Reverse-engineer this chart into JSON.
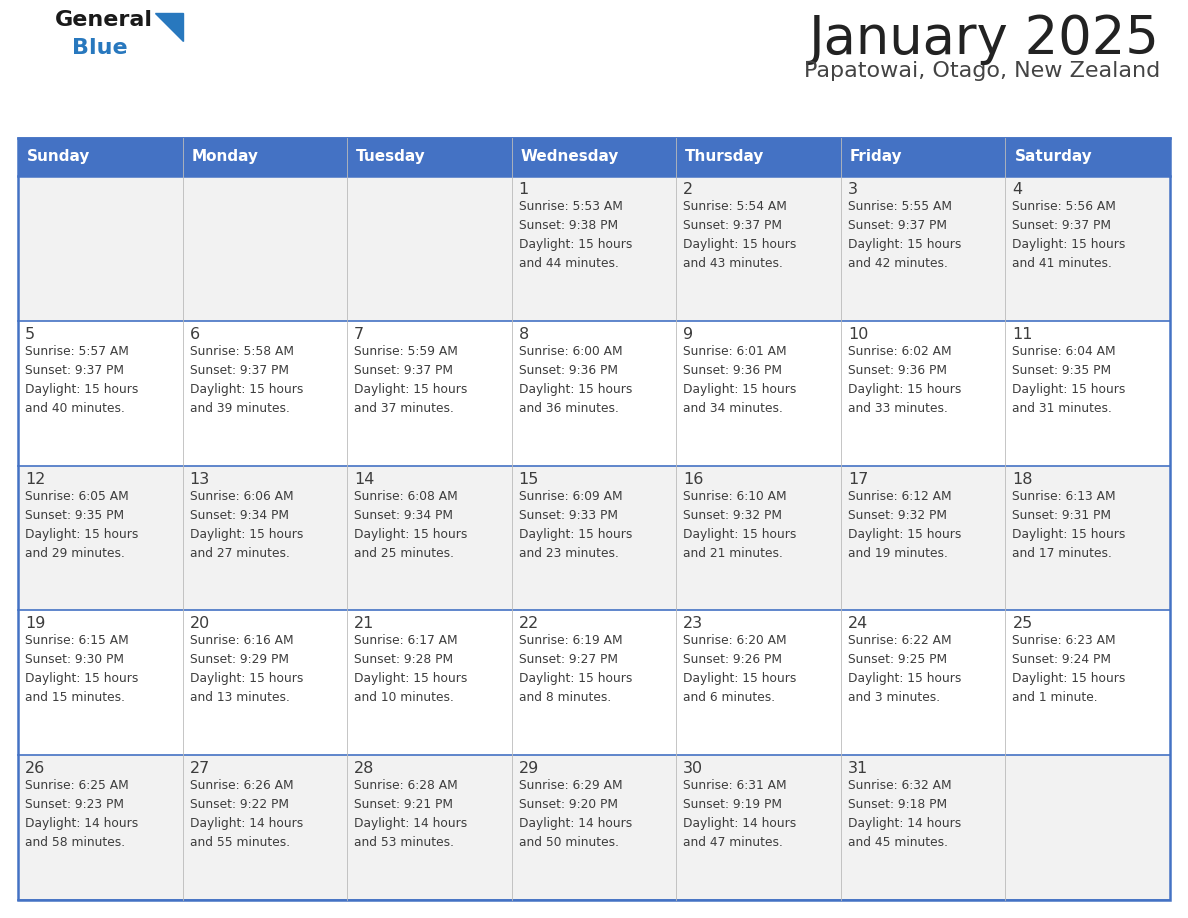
{
  "title": "January 2025",
  "subtitle": "Papatowai, Otago, New Zealand",
  "header_bg": "#4472C4",
  "header_text_color": "#FFFFFF",
  "day_names": [
    "Sunday",
    "Monday",
    "Tuesday",
    "Wednesday",
    "Thursday",
    "Friday",
    "Saturday"
  ],
  "odd_row_bg": "#F2F2F2",
  "even_row_bg": "#FFFFFF",
  "border_color": "#4472C4",
  "text_color": "#3D3D3D",
  "title_color": "#222222",
  "subtitle_color": "#444444",
  "calendar": [
    [
      {
        "day": "",
        "info": ""
      },
      {
        "day": "",
        "info": ""
      },
      {
        "day": "",
        "info": ""
      },
      {
        "day": "1",
        "info": "Sunrise: 5:53 AM\nSunset: 9:38 PM\nDaylight: 15 hours\nand 44 minutes."
      },
      {
        "day": "2",
        "info": "Sunrise: 5:54 AM\nSunset: 9:37 PM\nDaylight: 15 hours\nand 43 minutes."
      },
      {
        "day": "3",
        "info": "Sunrise: 5:55 AM\nSunset: 9:37 PM\nDaylight: 15 hours\nand 42 minutes."
      },
      {
        "day": "4",
        "info": "Sunrise: 5:56 AM\nSunset: 9:37 PM\nDaylight: 15 hours\nand 41 minutes."
      }
    ],
    [
      {
        "day": "5",
        "info": "Sunrise: 5:57 AM\nSunset: 9:37 PM\nDaylight: 15 hours\nand 40 minutes."
      },
      {
        "day": "6",
        "info": "Sunrise: 5:58 AM\nSunset: 9:37 PM\nDaylight: 15 hours\nand 39 minutes."
      },
      {
        "day": "7",
        "info": "Sunrise: 5:59 AM\nSunset: 9:37 PM\nDaylight: 15 hours\nand 37 minutes."
      },
      {
        "day": "8",
        "info": "Sunrise: 6:00 AM\nSunset: 9:36 PM\nDaylight: 15 hours\nand 36 minutes."
      },
      {
        "day": "9",
        "info": "Sunrise: 6:01 AM\nSunset: 9:36 PM\nDaylight: 15 hours\nand 34 minutes."
      },
      {
        "day": "10",
        "info": "Sunrise: 6:02 AM\nSunset: 9:36 PM\nDaylight: 15 hours\nand 33 minutes."
      },
      {
        "day": "11",
        "info": "Sunrise: 6:04 AM\nSunset: 9:35 PM\nDaylight: 15 hours\nand 31 minutes."
      }
    ],
    [
      {
        "day": "12",
        "info": "Sunrise: 6:05 AM\nSunset: 9:35 PM\nDaylight: 15 hours\nand 29 minutes."
      },
      {
        "day": "13",
        "info": "Sunrise: 6:06 AM\nSunset: 9:34 PM\nDaylight: 15 hours\nand 27 minutes."
      },
      {
        "day": "14",
        "info": "Sunrise: 6:08 AM\nSunset: 9:34 PM\nDaylight: 15 hours\nand 25 minutes."
      },
      {
        "day": "15",
        "info": "Sunrise: 6:09 AM\nSunset: 9:33 PM\nDaylight: 15 hours\nand 23 minutes."
      },
      {
        "day": "16",
        "info": "Sunrise: 6:10 AM\nSunset: 9:32 PM\nDaylight: 15 hours\nand 21 minutes."
      },
      {
        "day": "17",
        "info": "Sunrise: 6:12 AM\nSunset: 9:32 PM\nDaylight: 15 hours\nand 19 minutes."
      },
      {
        "day": "18",
        "info": "Sunrise: 6:13 AM\nSunset: 9:31 PM\nDaylight: 15 hours\nand 17 minutes."
      }
    ],
    [
      {
        "day": "19",
        "info": "Sunrise: 6:15 AM\nSunset: 9:30 PM\nDaylight: 15 hours\nand 15 minutes."
      },
      {
        "day": "20",
        "info": "Sunrise: 6:16 AM\nSunset: 9:29 PM\nDaylight: 15 hours\nand 13 minutes."
      },
      {
        "day": "21",
        "info": "Sunrise: 6:17 AM\nSunset: 9:28 PM\nDaylight: 15 hours\nand 10 minutes."
      },
      {
        "day": "22",
        "info": "Sunrise: 6:19 AM\nSunset: 9:27 PM\nDaylight: 15 hours\nand 8 minutes."
      },
      {
        "day": "23",
        "info": "Sunrise: 6:20 AM\nSunset: 9:26 PM\nDaylight: 15 hours\nand 6 minutes."
      },
      {
        "day": "24",
        "info": "Sunrise: 6:22 AM\nSunset: 9:25 PM\nDaylight: 15 hours\nand 3 minutes."
      },
      {
        "day": "25",
        "info": "Sunrise: 6:23 AM\nSunset: 9:24 PM\nDaylight: 15 hours\nand 1 minute."
      }
    ],
    [
      {
        "day": "26",
        "info": "Sunrise: 6:25 AM\nSunset: 9:23 PM\nDaylight: 14 hours\nand 58 minutes."
      },
      {
        "day": "27",
        "info": "Sunrise: 6:26 AM\nSunset: 9:22 PM\nDaylight: 14 hours\nand 55 minutes."
      },
      {
        "day": "28",
        "info": "Sunrise: 6:28 AM\nSunset: 9:21 PM\nDaylight: 14 hours\nand 53 minutes."
      },
      {
        "day": "29",
        "info": "Sunrise: 6:29 AM\nSunset: 9:20 PM\nDaylight: 14 hours\nand 50 minutes."
      },
      {
        "day": "30",
        "info": "Sunrise: 6:31 AM\nSunset: 9:19 PM\nDaylight: 14 hours\nand 47 minutes."
      },
      {
        "day": "31",
        "info": "Sunrise: 6:32 AM\nSunset: 9:18 PM\nDaylight: 14 hours\nand 45 minutes."
      },
      {
        "day": "",
        "info": ""
      }
    ]
  ],
  "logo_general_color": "#1A1A1A",
  "logo_blue_color": "#2878BE",
  "logo_triangle_color": "#2878BE"
}
